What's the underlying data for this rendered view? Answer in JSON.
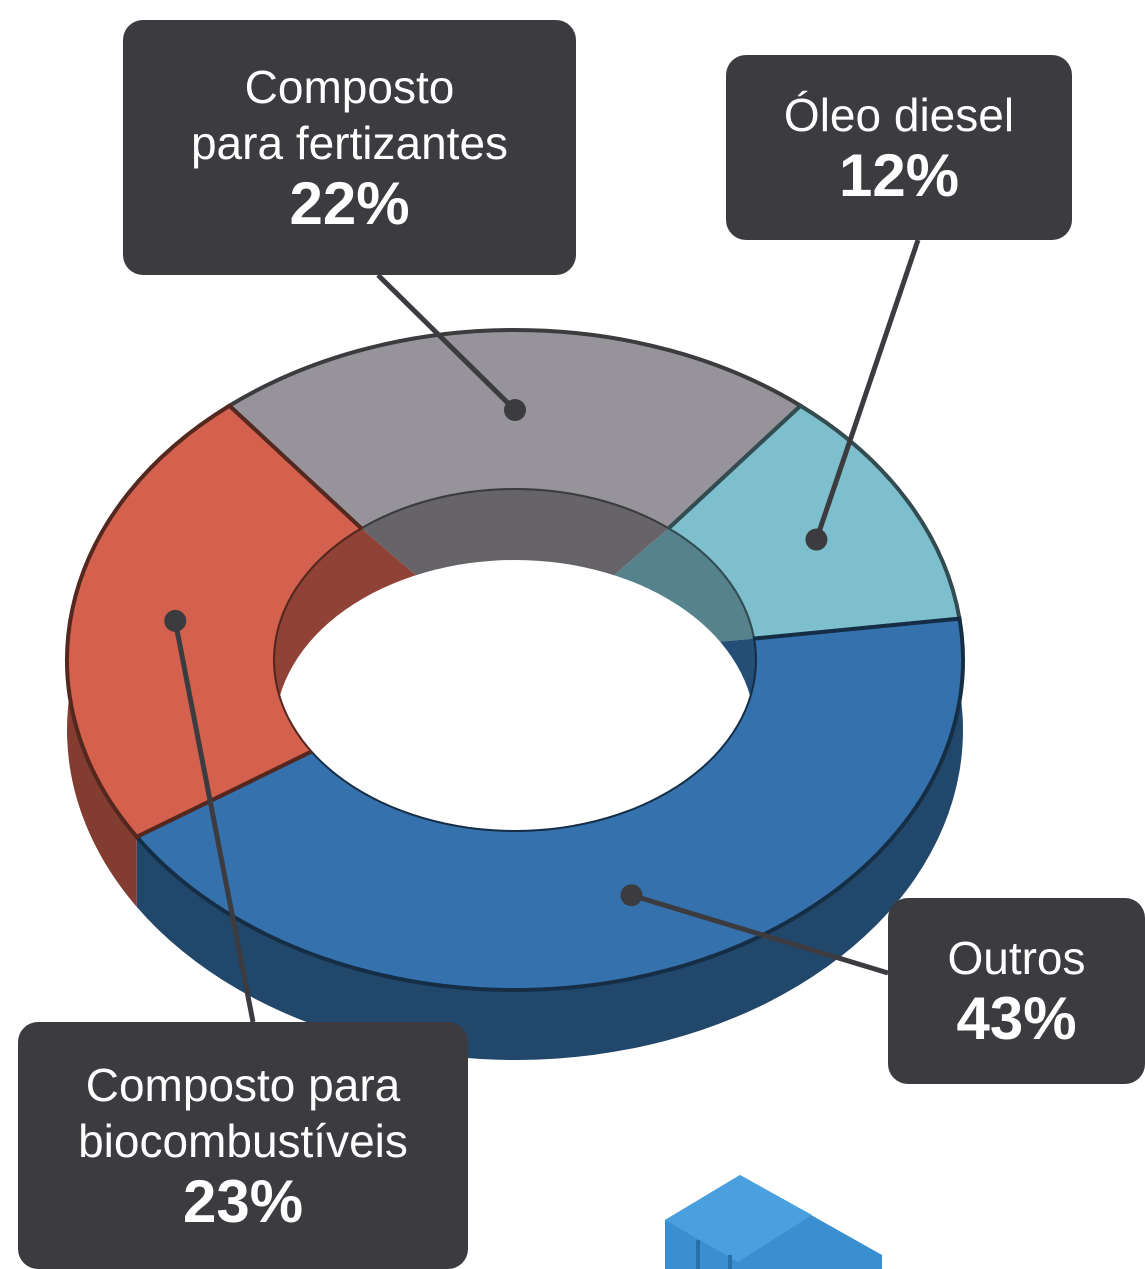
{
  "chart_data": {
    "type": "donut",
    "categories": [
      "Composto\npara fertizantes",
      "Óleo diesel",
      "Outros",
      "Composto para\nbiocombustíveis"
    ],
    "values": [
      22,
      12,
      43,
      23
    ],
    "value_labels": [
      "22%",
      "12%",
      "43%",
      "23%"
    ],
    "colors": [
      "#96939a",
      "#7dbfcc",
      "#3572ad",
      "#d3614e"
    ]
  }
}
